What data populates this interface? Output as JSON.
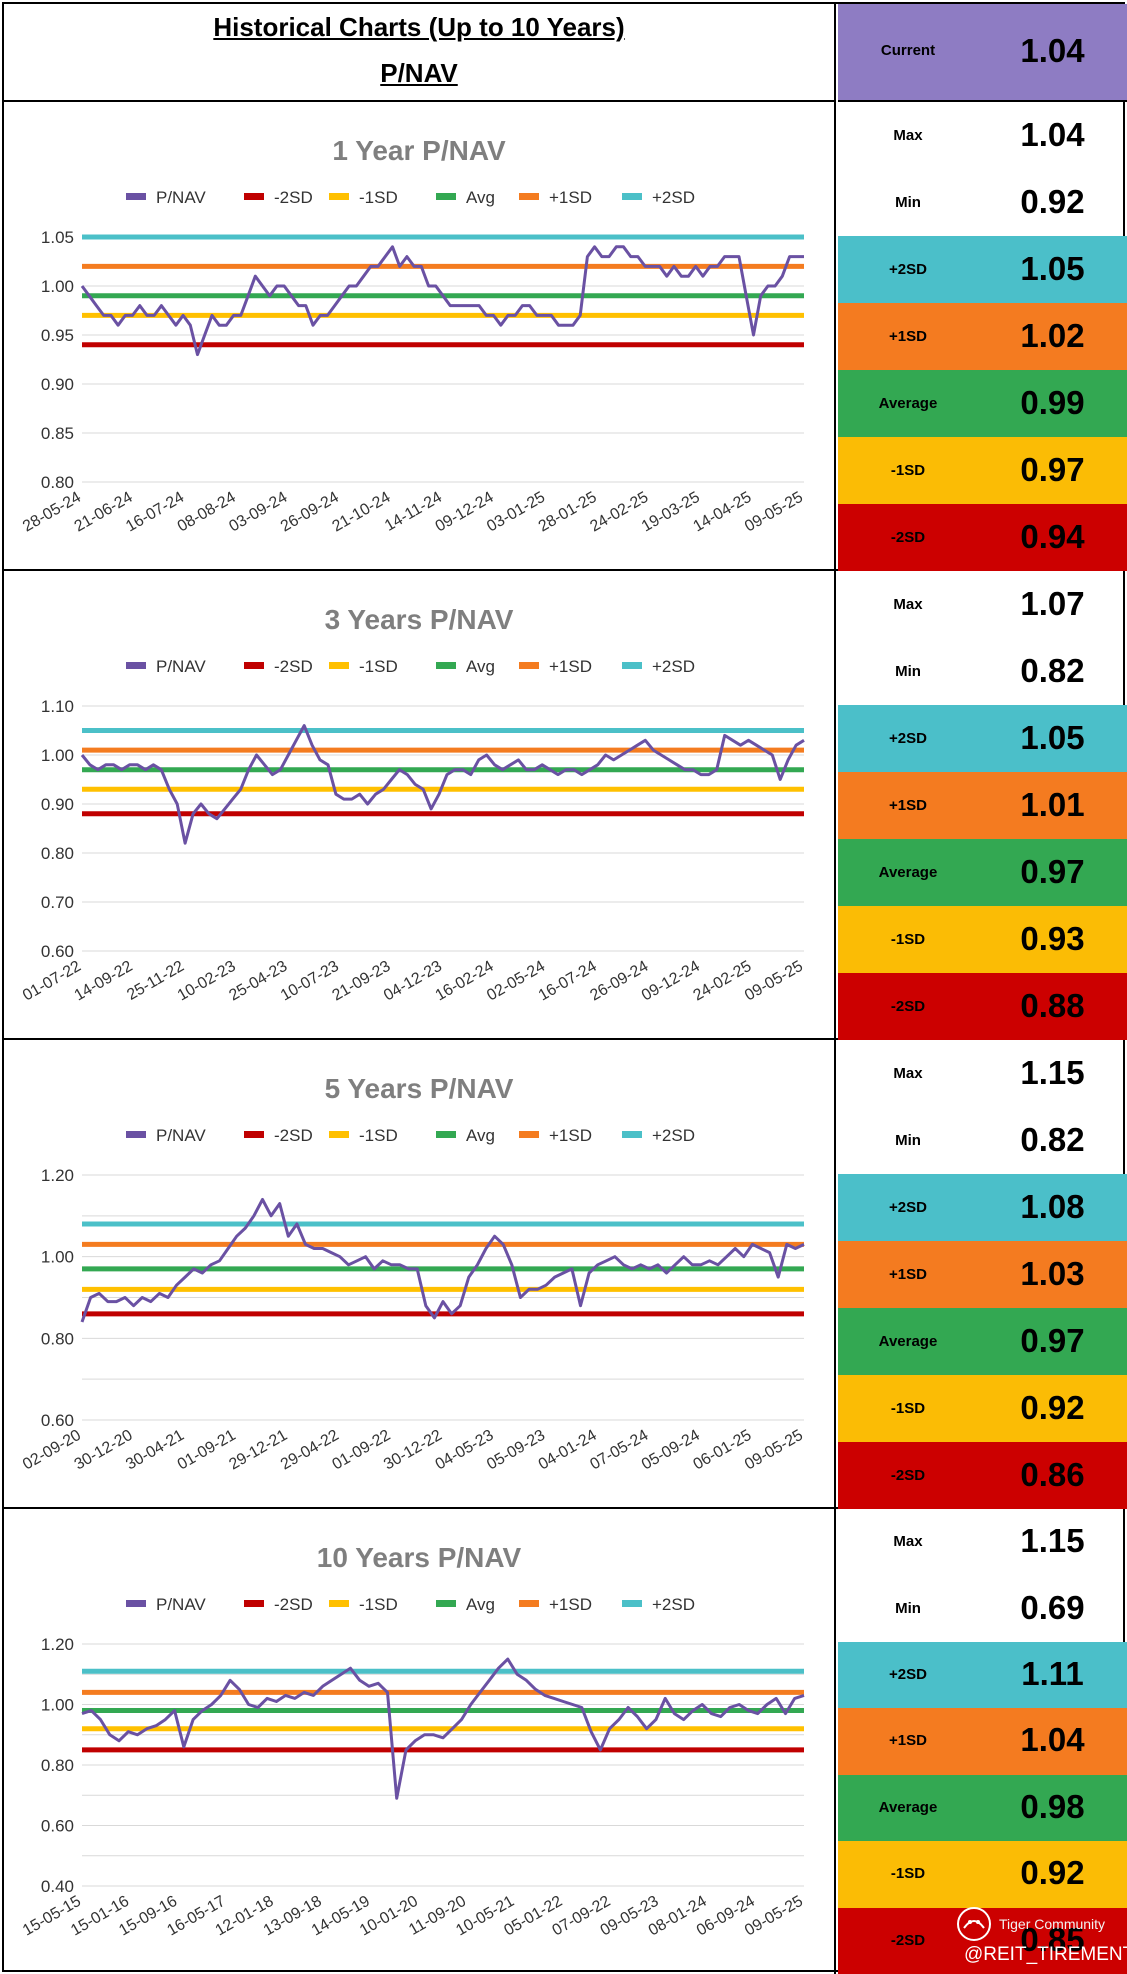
{
  "header": {
    "title": "Historical Charts (Up to 10 Years)",
    "subtitle": "P/NAV",
    "current_label": "Current",
    "current_value": "1.04",
    "current_color": "#8e7cc3"
  },
  "legend_labels": [
    "P/NAV",
    "-2SD",
    "-1SD",
    "Avg",
    "+1SD",
    "+2SD"
  ],
  "colors": {
    "pnav": "#6a51a3",
    "m2sd": "#c00000",
    "m1sd": "#ffc000",
    "avg": "#33a852",
    "p1sd": "#f47c20",
    "p2sd": "#4bc0c8",
    "grid": "#d9d9d9",
    "axis_text": "#333333",
    "title_text": "#7f7f7f"
  },
  "stat_colors": {
    "p2sd": "#4bbfc9",
    "p1sd": "#f47b20",
    "avg": "#33a852",
    "m1sd": "#fbbc05",
    "m2sd": "#cc0000"
  },
  "charts": [
    {
      "title": "1 Year P/NAV",
      "stats": {
        "max_label": "Max",
        "max": "1.04",
        "min_label": "Min",
        "min": "0.92",
        "p2sd_label": "+2SD",
        "p2sd": "1.05",
        "p1sd_label": "+1SD",
        "p1sd": "1.02",
        "avg_label": "Average",
        "avg": "0.99",
        "m1sd_label": "-1SD",
        "m1sd": "0.97",
        "m2sd_label": "-2SD",
        "m2sd": "0.94"
      }
    },
    {
      "title": "3 Years P/NAV",
      "stats": {
        "max_label": "Max",
        "max": "1.07",
        "min_label": "Min",
        "min": "0.82",
        "p2sd_label": "+2SD",
        "p2sd": "1.05",
        "p1sd_label": "+1SD",
        "p1sd": "1.01",
        "avg_label": "Average",
        "avg": "0.97",
        "m1sd_label": "-1SD",
        "m1sd": "0.93",
        "m2sd_label": "-2SD",
        "m2sd": "0.88"
      }
    },
    {
      "title": "5 Years P/NAV",
      "stats": {
        "max_label": "Max",
        "max": "1.15",
        "min_label": "Min",
        "min": "0.82",
        "p2sd_label": "+2SD",
        "p2sd": "1.08",
        "p1sd_label": "+1SD",
        "p1sd": "1.03",
        "avg_label": "Average",
        "avg": "0.97",
        "m1sd_label": "-1SD",
        "m1sd": "0.92",
        "m2sd_label": "-2SD",
        "m2sd": "0.86"
      }
    },
    {
      "title": "10 Years P/NAV",
      "stats": {
        "max_label": "Max",
        "max": "1.15",
        "min_label": "Min",
        "min": "0.69",
        "p2sd_label": "+2SD",
        "p2sd": "1.11",
        "p1sd_label": "+1SD",
        "p1sd": "1.04",
        "avg_label": "Average",
        "avg": "0.98",
        "m1sd_label": "-1SD",
        "m1sd": "0.92",
        "m2sd_label": "-2SD",
        "m2sd": "0.85"
      }
    }
  ],
  "chart_data": [
    {
      "type": "line",
      "title": "1 Year P/NAV",
      "ylim": [
        0.8,
        1.05
      ],
      "yticks": [
        "0.80",
        "0.85",
        "0.90",
        "0.95",
        "1.00",
        "1.05"
      ],
      "ytick_values": [
        0.8,
        0.85,
        0.9,
        0.95,
        1.0,
        1.05
      ],
      "xtick_labels": [
        "28-05-24",
        "21-06-24",
        "16-07-24",
        "08-08-24",
        "03-09-24",
        "26-09-24",
        "21-10-24",
        "14-11-24",
        "09-12-24",
        "03-01-25",
        "28-01-25",
        "24-02-25",
        "19-03-25",
        "14-04-25",
        "09-05-25"
      ],
      "grid": true,
      "legend": "top",
      "bands": {
        "m2sd": 0.94,
        "m1sd": 0.97,
        "avg": 0.99,
        "p1sd": 1.02,
        "p2sd": 1.05
      },
      "series": [
        {
          "name": "P/NAV",
          "values": [
            1.0,
            0.99,
            0.98,
            0.97,
            0.97,
            0.96,
            0.97,
            0.97,
            0.98,
            0.97,
            0.97,
            0.98,
            0.97,
            0.96,
            0.97,
            0.96,
            0.93,
            0.95,
            0.97,
            0.96,
            0.96,
            0.97,
            0.97,
            0.99,
            1.01,
            1.0,
            0.99,
            1.0,
            1.0,
            0.99,
            0.98,
            0.98,
            0.96,
            0.97,
            0.97,
            0.98,
            0.99,
            1.0,
            1.0,
            1.01,
            1.02,
            1.02,
            1.03,
            1.04,
            1.02,
            1.03,
            1.02,
            1.02,
            1.0,
            1.0,
            0.99,
            0.98,
            0.98,
            0.98,
            0.98,
            0.98,
            0.97,
            0.97,
            0.96,
            0.97,
            0.97,
            0.98,
            0.98,
            0.97,
            0.97,
            0.97,
            0.96,
            0.96,
            0.96,
            0.97,
            1.03,
            1.04,
            1.03,
            1.03,
            1.04,
            1.04,
            1.03,
            1.03,
            1.02,
            1.02,
            1.02,
            1.01,
            1.02,
            1.01,
            1.01,
            1.02,
            1.01,
            1.02,
            1.02,
            1.03,
            1.03,
            1.03,
            0.99,
            0.95,
            0.99,
            1.0,
            1.0,
            1.01,
            1.03,
            1.03,
            1.03
          ]
        }
      ]
    },
    {
      "type": "line",
      "title": "3 Years P/NAV",
      "ylim": [
        0.6,
        1.1
      ],
      "yticks": [
        "0.60",
        "0.70",
        "0.80",
        "0.90",
        "1.00",
        "1.10"
      ],
      "ytick_values": [
        0.6,
        0.7,
        0.8,
        0.9,
        1.0,
        1.1
      ],
      "xtick_labels": [
        "01-07-22",
        "14-09-22",
        "25-11-22",
        "10-02-23",
        "25-04-23",
        "10-07-23",
        "21-09-23",
        "04-12-23",
        "16-02-24",
        "02-05-24",
        "16-07-24",
        "26-09-24",
        "09-12-24",
        "24-02-25",
        "09-05-25"
      ],
      "grid": true,
      "legend": "top",
      "bands": {
        "m2sd": 0.88,
        "m1sd": 0.93,
        "avg": 0.97,
        "p1sd": 1.01,
        "p2sd": 1.05
      },
      "series": [
        {
          "name": "P/NAV",
          "values": [
            1.0,
            0.98,
            0.97,
            0.98,
            0.98,
            0.97,
            0.98,
            0.98,
            0.97,
            0.98,
            0.97,
            0.93,
            0.9,
            0.82,
            0.88,
            0.9,
            0.88,
            0.87,
            0.89,
            0.91,
            0.93,
            0.97,
            1.0,
            0.98,
            0.96,
            0.97,
            1.0,
            1.03,
            1.06,
            1.02,
            0.99,
            0.98,
            0.92,
            0.91,
            0.91,
            0.92,
            0.9,
            0.92,
            0.93,
            0.95,
            0.97,
            0.96,
            0.94,
            0.93,
            0.89,
            0.92,
            0.96,
            0.97,
            0.97,
            0.96,
            0.99,
            1.0,
            0.98,
            0.97,
            0.98,
            0.99,
            0.97,
            0.97,
            0.98,
            0.97,
            0.96,
            0.97,
            0.97,
            0.96,
            0.97,
            0.98,
            1.0,
            0.99,
            1.0,
            1.01,
            1.02,
            1.03,
            1.01,
            1.0,
            0.99,
            0.98,
            0.97,
            0.97,
            0.96,
            0.96,
            0.97,
            1.04,
            1.03,
            1.02,
            1.03,
            1.02,
            1.01,
            1.0,
            0.95,
            0.99,
            1.02,
            1.03
          ]
        }
      ]
    },
    {
      "type": "line",
      "title": "5 Years P/NAV",
      "ylim": [
        0.6,
        1.2
      ],
      "yticks": [
        "0.60",
        "0.80",
        "1.00",
        "1.20"
      ],
      "ytick_values": [
        0.6,
        0.8,
        1.0,
        1.2
      ],
      "xtick_labels": [
        "02-09-20",
        "30-12-20",
        "30-04-21",
        "01-09-21",
        "29-12-21",
        "29-04-22",
        "01-09-22",
        "30-12-22",
        "04-05-23",
        "05-09-23",
        "04-01-24",
        "07-05-24",
        "05-09-24",
        "06-01-25",
        "09-05-25"
      ],
      "grid": true,
      "legend": "top",
      "bands": {
        "m2sd": 0.86,
        "m1sd": 0.92,
        "avg": 0.97,
        "p1sd": 1.03,
        "p2sd": 1.08
      },
      "series": [
        {
          "name": "P/NAV",
          "values": [
            0.84,
            0.9,
            0.91,
            0.89,
            0.89,
            0.9,
            0.88,
            0.9,
            0.89,
            0.91,
            0.9,
            0.93,
            0.95,
            0.97,
            0.96,
            0.98,
            0.99,
            1.02,
            1.05,
            1.07,
            1.1,
            1.14,
            1.1,
            1.13,
            1.05,
            1.08,
            1.03,
            1.02,
            1.02,
            1.01,
            1.0,
            0.98,
            0.99,
            1.0,
            0.97,
            0.99,
            0.98,
            0.98,
            0.97,
            0.97,
            0.88,
            0.85,
            0.89,
            0.86,
            0.88,
            0.95,
            0.98,
            1.02,
            1.05,
            1.03,
            0.98,
            0.9,
            0.92,
            0.92,
            0.93,
            0.95,
            0.96,
            0.97,
            0.88,
            0.96,
            0.98,
            0.99,
            1.0,
            0.98,
            0.97,
            0.98,
            0.97,
            0.98,
            0.96,
            0.98,
            1.0,
            0.98,
            0.98,
            0.99,
            0.98,
            1.0,
            1.02,
            1.0,
            1.03,
            1.02,
            1.01,
            0.95,
            1.03,
            1.02,
            1.03
          ]
        }
      ]
    },
    {
      "type": "line",
      "title": "10 Years P/NAV",
      "ylim": [
        0.4,
        1.2
      ],
      "yticks": [
        "0.40",
        "0.60",
        "0.80",
        "1.00",
        "1.20"
      ],
      "ytick_values": [
        0.4,
        0.6,
        0.8,
        1.0,
        1.2
      ],
      "xtick_labels": [
        "15-05-15",
        "15-01-16",
        "15-09-16",
        "16-05-17",
        "12-01-18",
        "13-09-18",
        "14-05-19",
        "10-01-20",
        "11-09-20",
        "10-05-21",
        "05-01-22",
        "07-09-22",
        "09-05-23",
        "08-01-24",
        "06-09-24",
        "09-05-25"
      ],
      "grid": true,
      "legend": "top",
      "bands": {
        "m2sd": 0.85,
        "m1sd": 0.92,
        "avg": 0.98,
        "p1sd": 1.04,
        "p2sd": 1.11
      },
      "series": [
        {
          "name": "P/NAV",
          "values": [
            0.97,
            0.98,
            0.95,
            0.9,
            0.88,
            0.91,
            0.9,
            0.92,
            0.93,
            0.95,
            0.98,
            0.86,
            0.95,
            0.98,
            1.0,
            1.03,
            1.08,
            1.05,
            1.0,
            0.99,
            1.02,
            1.01,
            1.03,
            1.02,
            1.04,
            1.03,
            1.06,
            1.08,
            1.1,
            1.12,
            1.08,
            1.06,
            1.07,
            1.04,
            0.69,
            0.85,
            0.88,
            0.9,
            0.9,
            0.89,
            0.92,
            0.95,
            1.0,
            1.04,
            1.08,
            1.12,
            1.15,
            1.1,
            1.08,
            1.05,
            1.03,
            1.02,
            1.01,
            1.0,
            0.99,
            0.91,
            0.85,
            0.92,
            0.95,
            0.99,
            0.96,
            0.92,
            0.95,
            1.02,
            0.97,
            0.95,
            0.98,
            1.0,
            0.97,
            0.96,
            0.99,
            1.0,
            0.98,
            0.97,
            1.0,
            1.02,
            0.97,
            1.02,
            1.03
          ]
        }
      ]
    }
  ],
  "watermark": {
    "brand": "Tiger Community",
    "handle": "@REIT_TIREMENT"
  }
}
